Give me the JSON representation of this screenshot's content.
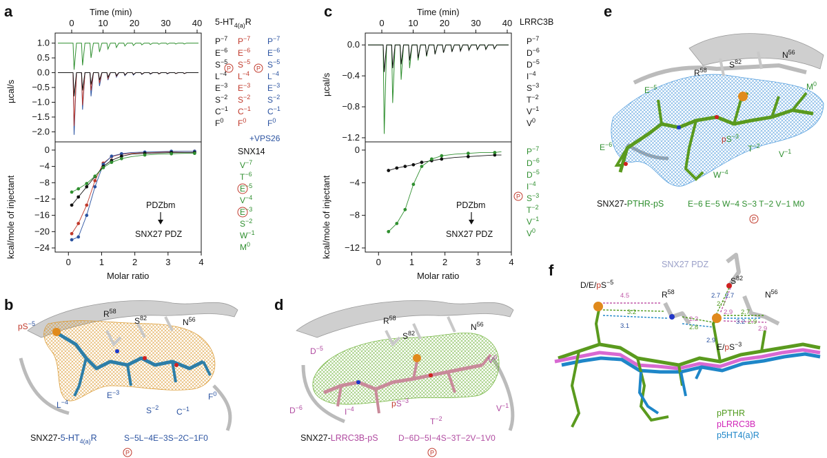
{
  "panel_labels": {
    "a": "a",
    "b": "b",
    "c": "c",
    "d": "d",
    "e": "e",
    "f": "f"
  },
  "chart_data": [
    {
      "type": "line",
      "panel": "a",
      "x_top_label": "Time (min)",
      "x_top_ticks": [
        "0",
        "10",
        "20",
        "30",
        "40"
      ],
      "top_ylabel": "µcal/s",
      "top_ticks": [
        "1.0",
        "0.5",
        "0.0",
        "−0.5",
        "−1.0",
        "−1.5",
        "−2.0"
      ],
      "bottom_ylabel": "kcal/mole of injectant",
      "bottom_ticks": [
        "0",
        "−4",
        "−8",
        "−12",
        "−16",
        "−20",
        "−24"
      ],
      "xlabel": "Molar ratio",
      "x_ticks": [
        "0",
        "1",
        "2",
        "3",
        "4"
      ],
      "annotation_top": "PDZbm",
      "annotation_bottom": "SNX27 PDZ",
      "xlim": [
        -0.4,
        4
      ],
      "ylim": [
        -24,
        1
      ],
      "series": [
        {
          "color": "#c0392b",
          "x": [
            0.1,
            0.3,
            0.55,
            0.8,
            1.05,
            1.3,
            1.6,
            1.9,
            2.3,
            2.7,
            3.1,
            3.5,
            3.8
          ],
          "y": [
            -20.5,
            -18.0,
            -13.5,
            -7.5,
            -3.2,
            -1.6,
            -1.0,
            -0.8,
            -0.6,
            -0.5,
            -0.4,
            -0.3,
            -0.3
          ]
        },
        {
          "color": "#2a52a0",
          "x": [
            0.1,
            0.3,
            0.55,
            0.8,
            1.05,
            1.3,
            1.6,
            1.9,
            2.3,
            2.7,
            3.1,
            3.5,
            3.8
          ],
          "y": [
            -22.0,
            -21.3,
            -16.0,
            -9.0,
            -3.5,
            -1.5,
            -0.9,
            -0.6,
            -0.5,
            -0.4,
            -0.3,
            -0.3,
            -0.3
          ]
        },
        {
          "color": "#111111",
          "x": [
            0.1,
            0.3,
            0.55,
            0.8,
            1.05,
            1.3,
            1.6,
            1.9,
            2.3,
            2.7,
            3.1,
            3.5,
            3.8
          ],
          "y": [
            -13.5,
            -11.5,
            -9.0,
            -6.5,
            -4.0,
            -2.5,
            -1.5,
            -1.0,
            -0.8,
            -0.7,
            -0.6,
            -0.6,
            -0.6
          ]
        },
        {
          "color": "#2f8f2f",
          "x": [
            0.1,
            0.3,
            0.55,
            0.8,
            1.05,
            1.3,
            1.6,
            1.9,
            2.3,
            2.7,
            3.1,
            3.5,
            3.8
          ],
          "y": [
            -10.3,
            -9.5,
            -8.2,
            -6.4,
            -4.3,
            -3.0,
            -2.1,
            -1.6,
            -1.2,
            -1.0,
            -0.9,
            -0.8,
            -0.8
          ]
        }
      ]
    },
    {
      "type": "line",
      "panel": "c",
      "x_top_label": "Time (min)",
      "x_top_ticks": [
        "0",
        "10",
        "20",
        "30",
        "40"
      ],
      "top_ylabel": "µcal/s",
      "top_ticks": [
        "0.0",
        "−0.4",
        "−0.8",
        "−1.2"
      ],
      "bottom_ylabel": "kcal/mole of injectant",
      "bottom_ticks": [
        "0",
        "−4",
        "−8",
        "−12"
      ],
      "xlabel": "Molar ratio",
      "x_ticks": [
        "0",
        "1",
        "2",
        "3",
        "4"
      ],
      "annotation_top": "PDZbm",
      "annotation_bottom": "SNX27 PDZ",
      "xlim": [
        -0.4,
        4
      ],
      "ylim": [
        -12,
        0.5
      ],
      "series": [
        {
          "color": "#111111",
          "x": [
            0.3,
            0.55,
            0.8,
            1.05,
            1.3,
            1.6,
            1.9,
            2.3,
            2.7,
            3.1,
            3.5,
            3.7
          ],
          "y": [
            -2.5,
            -2.2,
            -2.0,
            -1.8,
            -1.5,
            -1.3,
            -1.1,
            -0.9,
            -0.8,
            -0.7,
            -0.6,
            -0.6
          ]
        },
        {
          "color": "#2f8f2f",
          "x": [
            0.3,
            0.55,
            0.8,
            1.05,
            1.3,
            1.6,
            1.9,
            2.3,
            2.7,
            3.1,
            3.5,
            3.7
          ],
          "y": [
            -10.0,
            -9.0,
            -7.3,
            -4.2,
            -2.0,
            -1.1,
            -0.7,
            -0.5,
            -0.4,
            -0.3,
            -0.3,
            -0.2
          ]
        }
      ]
    }
  ],
  "panel_a": {
    "receptor_label": "5-HT",
    "receptor_sub": "4(a)",
    "receptor_suffix": "R",
    "seq_black": [
      "P",
      "E",
      "S",
      "L",
      "E",
      "S",
      "C",
      "F"
    ],
    "seq_red": [
      "P",
      "E",
      "S",
      "L",
      "E",
      "S",
      "C",
      "F"
    ],
    "seq_blue": [
      "P",
      "E",
      "S",
      "L",
      "E",
      "S",
      "C",
      "F"
    ],
    "sups": [
      "−7",
      "−6",
      "−5",
      "−4",
      "−3",
      "−2",
      "−1",
      "0"
    ],
    "vps_label": "+VPS26",
    "snx14_label": "SNX14",
    "snx14_seq": [
      "V",
      "T",
      "E",
      "V",
      "E",
      "S",
      "W",
      "M"
    ],
    "snx14_sups": [
      "−7",
      "−6",
      "−5",
      "−4",
      "−3",
      "−2",
      "−1",
      "0"
    ],
    "p_symbol": "P"
  },
  "panel_c": {
    "protein_label": "LRRC3B",
    "seq_black": [
      "P",
      "D",
      "D",
      "I",
      "S",
      "T",
      "V",
      "V"
    ],
    "seq_green": [
      "P",
      "D",
      "D",
      "I",
      "S",
      "T",
      "V",
      "V"
    ],
    "sups": [
      "−7",
      "−6",
      "−5",
      "−4",
      "−3",
      "−2",
      "−1",
      "0"
    ],
    "p_symbol": "P"
  },
  "panel_b": {
    "labels": {
      "ps": "pS",
      "ps_sup": "−5",
      "r58": "R",
      "r58_sup": "58",
      "s82": "S",
      "s82_sup": "82",
      "n56": "N",
      "n56_sup": "56",
      "l": "L",
      "l_sup": "−4",
      "e": "E",
      "e_sup": "−3",
      "s": "S",
      "s_sup": "−2",
      "c": "C",
      "c_sup": "−1",
      "f": "F",
      "f_sup": "0"
    },
    "caption_black": "SNX27-",
    "caption_blue": "5-HT",
    "caption_sub": "4(a)",
    "caption_r": "R",
    "caption_seq": "S−5L−4E−3S−2C−1F0",
    "p_symbol": "P"
  },
  "panel_d": {
    "labels": {
      "d5": "D",
      "d5_sup": "−5",
      "r58": "R",
      "r58_sup": "58",
      "s82": "S",
      "s82_sup": "82",
      "n56": "N",
      "n56_sup": "56",
      "v0": "V",
      "v0_sup": "0",
      "d6": "D",
      "d6_sup": "−6",
      "i4": "I",
      "i4_sup": "−4",
      "ps3": "pS",
      "ps3_sup": "−3",
      "t2": "T",
      "t2_sup": "−2",
      "v1": "V",
      "v1_sup": "−1"
    },
    "caption_black": "SNX27-",
    "caption_mag": "LRRC3B-pS",
    "caption_seq": "D−6D−5I−4S−3T−2V−1V0",
    "p_symbol": "P"
  },
  "panel_e": {
    "labels": {
      "r58": "R",
      "r58_sup": "58",
      "s82": "S",
      "s82_sup": "82",
      "n56": "N",
      "n56_sup": "56",
      "e5": "E",
      "e5_sup": "−5",
      "m0": "M",
      "m0_sup": "0",
      "e6": "E",
      "e6_sup": "−6",
      "ps3": "pS",
      "ps3_sup": "−3",
      "t2": "T",
      "t2_sup": "−2",
      "v1": "V",
      "v1_sup": "−1",
      "w4": "W",
      "w4_sup": "−4"
    },
    "caption_black": "SNX27-",
    "caption_green": "PTHR-pS",
    "caption_seq": "E−6  E−5  W−4  S−3  T−2  V−1  M0",
    "p_symbol": "P"
  },
  "panel_f": {
    "snx27": "SNX27 PDZ",
    "s82": "S",
    "s82_sup": "82",
    "r58": "R",
    "r58_sup": "58",
    "n56": "N",
    "n56_sup": "56",
    "dep_label": "D/E/",
    "dep_p": "p",
    "dep_s": "S",
    "dep_sup": "−5",
    "eps_label": "E/",
    "eps_p": "p",
    "eps_s": "S",
    "eps_sup": "−3",
    "dist": [
      "4.5",
      "3.2",
      "3.1",
      "2.8",
      "2.9",
      "2.2",
      "2.7",
      "2.7",
      "2.9",
      "3.2",
      "2.7",
      "2.9",
      "2.7",
      "2.9"
    ],
    "legend": [
      "pPTHR",
      "pLRRC3B",
      "p5HT4(a)R"
    ],
    "legend_colors": [
      "#4f9a1c",
      "#d024b8",
      "#1e86c8"
    ]
  }
}
